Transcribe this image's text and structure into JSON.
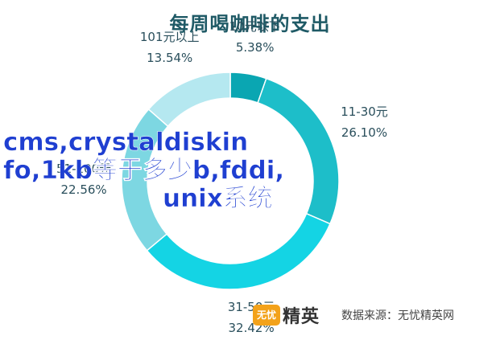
{
  "chart_data": {
    "type": "pie",
    "title": "每周喝咖啡的支出",
    "categories": [
      "10元以下",
      "11-30元",
      "31-50元",
      "51-100元",
      "101元以上"
    ],
    "values": [
      5.38,
      26.1,
      32.42,
      22.56,
      13.54
    ],
    "value_labels": [
      "5.38%",
      "26.10%",
      "32.42%",
      "22.56%",
      "13.54%"
    ],
    "colors": [
      "#0aa6b2",
      "#1dbec9",
      "#14d4e4",
      "#7dd7e2",
      "#b5e8f0"
    ],
    "donut": true,
    "legend": "none"
  },
  "overlay_text": {
    "line1": "cms,crystaldiskin",
    "line2": "fo,1kb等于多少b,fddi,",
    "line3": "unix系统"
  },
  "logo": {
    "badge": "无忧",
    "text": "精英"
  },
  "source": "数据来源：无忧精英网"
}
